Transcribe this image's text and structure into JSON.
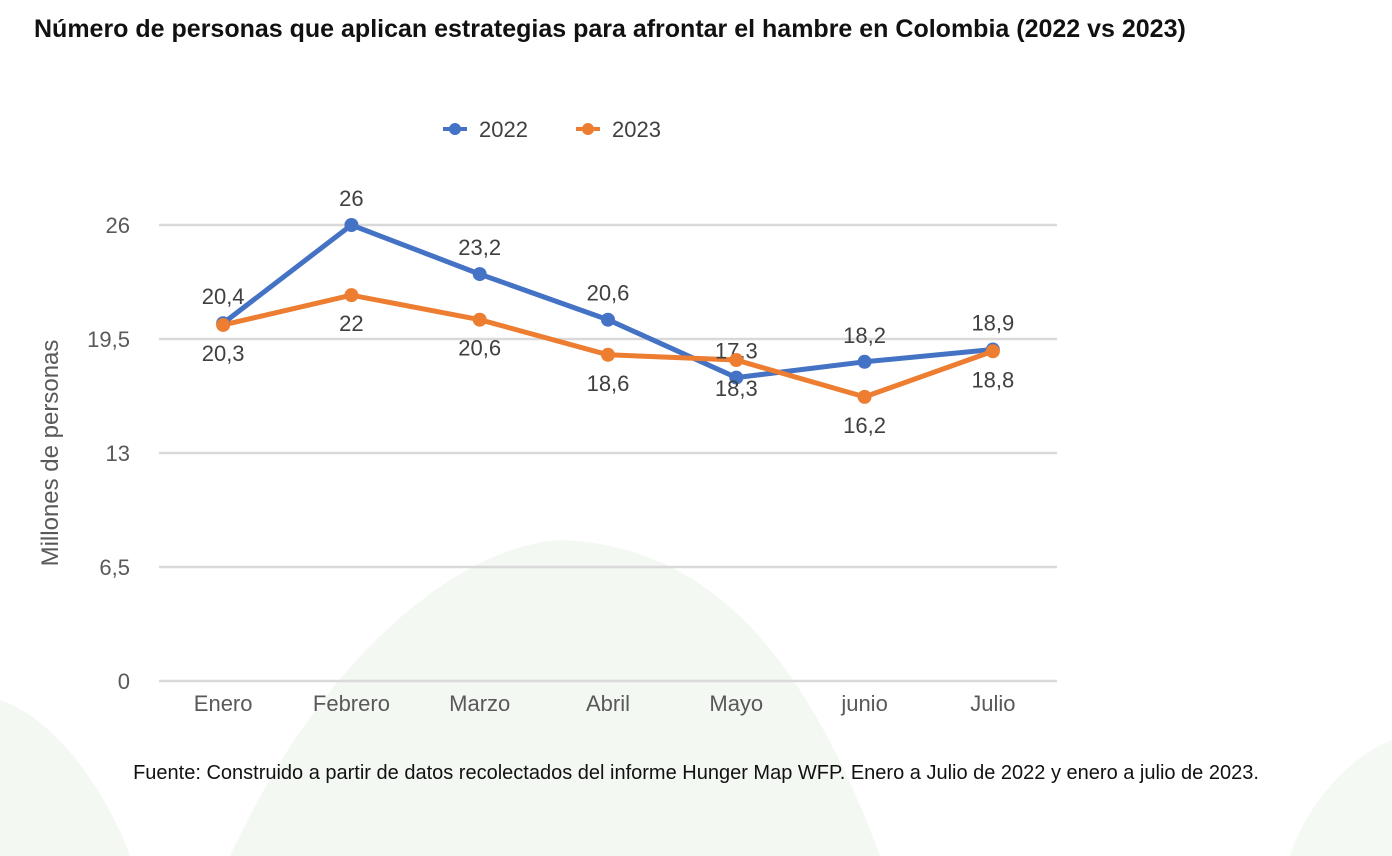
{
  "chart_data": {
    "type": "line",
    "title": "Número de personas que aplican estrategias para afrontar el hambre en Colombia  (2022 vs 2023)",
    "ylabel": "Millones de personas",
    "xlabel": "",
    "categories": [
      "Enero",
      "Febrero",
      "Marzo",
      "Abril",
      "Mayo",
      "junio",
      "Julio"
    ],
    "ylim": [
      0,
      26
    ],
    "yticks": [
      0,
      6.5,
      13,
      19.5,
      26
    ],
    "ytick_labels": [
      "0",
      "6,5",
      "13",
      "19,5",
      "26"
    ],
    "grid": true,
    "legend": "top",
    "series": [
      {
        "name": "2022",
        "color": "#4472C4",
        "values": [
          20.4,
          26,
          23.2,
          20.6,
          17.3,
          18.2,
          18.9
        ],
        "labels": [
          "20,4",
          "26",
          "23,2",
          "20,6",
          "17,3",
          "18,2",
          "18,9"
        ],
        "label_position": "above"
      },
      {
        "name": "2023",
        "color": "#ED7D31",
        "values": [
          20.3,
          22,
          20.6,
          18.6,
          18.3,
          16.2,
          18.8
        ],
        "labels": [
          "20,3",
          "22",
          "20,6",
          "18,6",
          "18,3",
          "16,2",
          "18,8"
        ],
        "label_position": "below"
      }
    ]
  },
  "source": "Fuente: Construido a partir de datos recolectados del informe Hunger Map WFP. Enero a Julio de 2022 y enero a julio de 2023."
}
